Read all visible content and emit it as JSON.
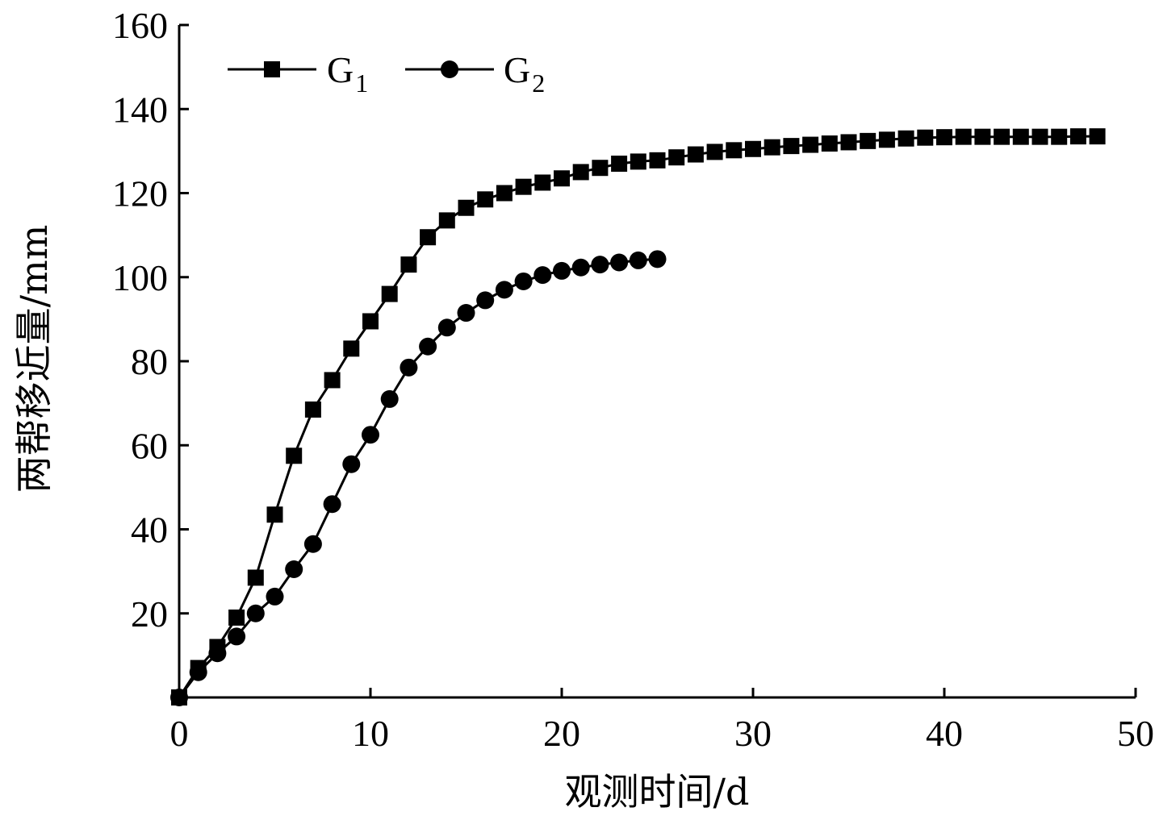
{
  "chart_data": {
    "type": "line",
    "xlabel": "观测时间/d",
    "ylabel": "两帮移近量/mm",
    "xlim": [
      0,
      50
    ],
    "ylim": [
      0,
      160
    ],
    "x_ticks": [
      "0",
      "10",
      "20",
      "30",
      "40",
      "50"
    ],
    "y_ticks": [
      "20",
      "40",
      "60",
      "80",
      "100",
      "120",
      "140",
      "160"
    ],
    "x_tick_values": [
      0,
      10,
      20,
      30,
      40,
      50
    ],
    "y_tick_values": [
      20,
      40,
      60,
      80,
      100,
      120,
      140,
      160
    ],
    "grid": false,
    "legend_position": "top-left",
    "colors": {
      "series": "#000000"
    },
    "series": [
      {
        "name": "G",
        "subscript": "1",
        "marker": "square",
        "x": [
          0,
          1,
          2,
          3,
          4,
          5,
          6,
          7,
          8,
          9,
          10,
          11,
          12,
          13,
          14,
          15,
          16,
          17,
          18,
          19,
          20,
          21,
          22,
          23,
          24,
          25,
          26,
          27,
          28,
          29,
          30,
          31,
          32,
          33,
          34,
          35,
          36,
          37,
          38,
          39,
          40,
          41,
          42,
          43,
          44,
          45,
          46,
          47,
          48
        ],
        "y": [
          0,
          7,
          12,
          19,
          28.5,
          43.5,
          57.5,
          68.5,
          75.5,
          83,
          89.5,
          96,
          103,
          109.5,
          113.5,
          116.5,
          118.5,
          120,
          121.5,
          122.5,
          123.5,
          125,
          126,
          127,
          127.5,
          127.8,
          128.5,
          129.2,
          129.8,
          130.2,
          130.5,
          130.9,
          131.2,
          131.5,
          131.8,
          132.1,
          132.4,
          132.7,
          133,
          133.2,
          133.3,
          133.4,
          133.4,
          133.4,
          133.4,
          133.4,
          133.4,
          133.5,
          133.5
        ]
      },
      {
        "name": "G",
        "subscript": "2",
        "marker": "circle",
        "x": [
          0,
          1,
          2,
          3,
          4,
          5,
          6,
          7,
          8,
          9,
          10,
          11,
          12,
          13,
          14,
          15,
          16,
          17,
          18,
          19,
          20,
          21,
          22,
          23,
          24,
          25
        ],
        "y": [
          0,
          6,
          10.5,
          14.5,
          20,
          24,
          30.5,
          36.5,
          46,
          55.5,
          62.5,
          71,
          78.5,
          83.5,
          88,
          91.5,
          94.5,
          97,
          99,
          100.5,
          101.5,
          102.3,
          103,
          103.5,
          104,
          104.3
        ]
      }
    ]
  }
}
